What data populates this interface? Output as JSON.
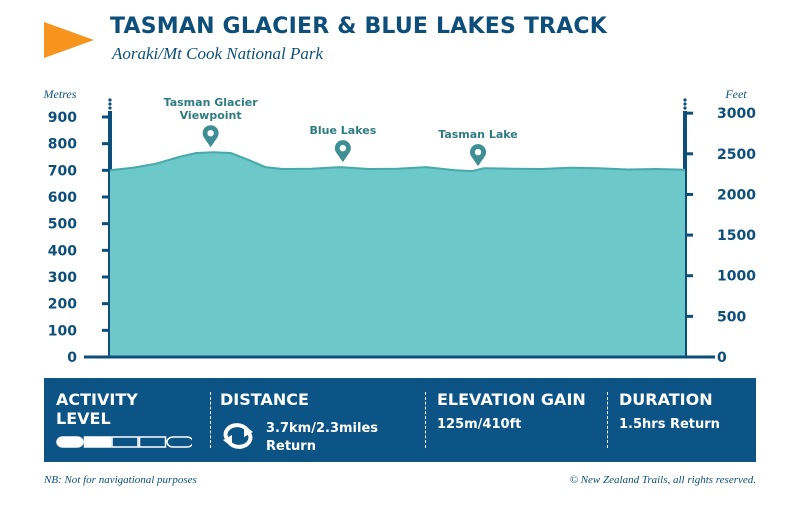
{
  "header": {
    "title": "TASMAN GLACIER & BLUE LAKES TRACK",
    "subtitle": "Aoraki/Mt Cook National Park",
    "flag_icon": "orange-triangle-flag-icon",
    "flag_color": "#f7941d",
    "title_color": "#0d4f7a"
  },
  "chart_data": {
    "type": "area",
    "left_axis": {
      "label": "Metres",
      "ticks": [
        0,
        100,
        200,
        300,
        400,
        500,
        600,
        700,
        800,
        900
      ],
      "range": [
        0,
        900
      ]
    },
    "right_axis": {
      "label": "Feet",
      "ticks": [
        0,
        500,
        1000,
        1500,
        2000,
        2500,
        3000
      ]
    },
    "x": [
      0,
      0.04,
      0.08,
      0.12,
      0.15,
      0.18,
      0.21,
      0.24,
      0.27,
      0.3,
      0.35,
      0.4,
      0.45,
      0.5,
      0.55,
      0.6,
      0.63,
      0.65,
      0.7,
      0.75,
      0.8,
      0.85,
      0.9,
      0.95,
      1.0
    ],
    "elevation_m": [
      700,
      710,
      725,
      750,
      765,
      768,
      765,
      740,
      712,
      705,
      706,
      712,
      705,
      706,
      712,
      700,
      697,
      708,
      706,
      705,
      710,
      708,
      703,
      705,
      702
    ],
    "markers": [
      {
        "label_lines": [
          "Tasman Glacier",
          "Viewpoint"
        ],
        "x": 0.175,
        "elevation_m": 768
      },
      {
        "label_lines": [
          "Blue Lakes"
        ],
        "x": 0.405,
        "elevation_m": 712
      },
      {
        "label_lines": [
          "Tasman Lake"
        ],
        "x": 0.64,
        "elevation_m": 697
      }
    ],
    "fill_color": "#6dc8c9",
    "line_color": "#46a9aa",
    "axis_color": "#0d4f7a"
  },
  "panel": {
    "background": "#0d5486",
    "activity": {
      "heading_line1": "ACTIVITY",
      "heading_line2": "LEVEL",
      "level": 2,
      "max_level": 5
    },
    "distance": {
      "heading": "DISTANCE",
      "value_line1": "3.7km/2.3miles",
      "value_line2": "Return",
      "icon": "return-loop-arrows-icon"
    },
    "elevation": {
      "heading": "ELEVATION GAIN",
      "value": "125m/410ft"
    },
    "duration": {
      "heading": "DURATION",
      "value": "1.5hrs Return"
    }
  },
  "footer": {
    "note": "NB: Not for navigational purposes",
    "copyright": "© New Zealand Trails, all rights reserved."
  }
}
